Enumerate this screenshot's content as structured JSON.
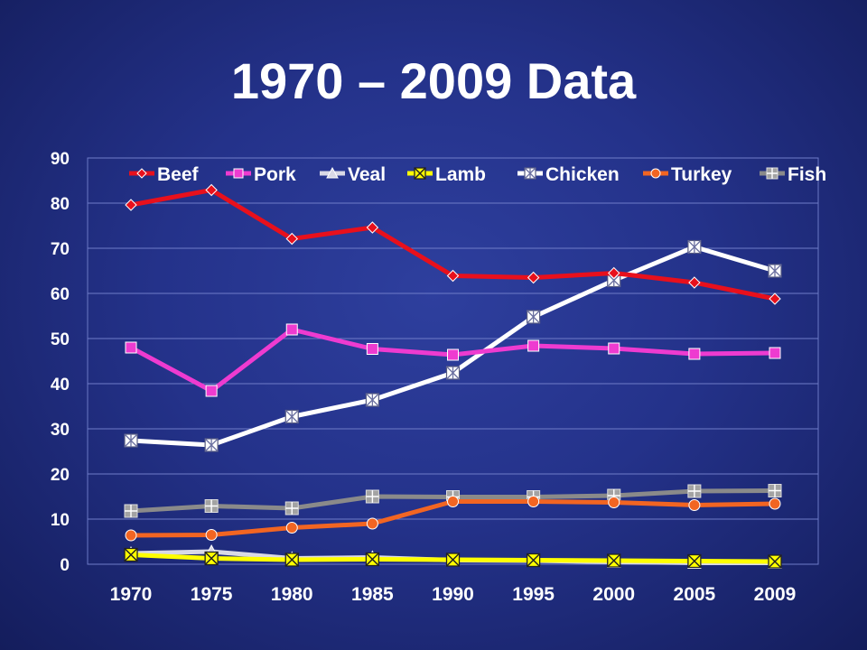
{
  "slide": {
    "title": "1970 – 2009 Data"
  },
  "chart_data": {
    "type": "line",
    "title": "",
    "xlabel": "",
    "ylabel": "",
    "categories": [
      "1970",
      "1975",
      "1980",
      "1985",
      "1990",
      "1995",
      "2000",
      "2005",
      "2009"
    ],
    "ylim": [
      0,
      90
    ],
    "yticks": [
      0,
      10,
      20,
      30,
      40,
      50,
      60,
      70,
      80,
      90
    ],
    "grid": true,
    "legend": "top",
    "series": [
      {
        "name": "Beef",
        "color": "#e8101c",
        "marker": "diamond",
        "markerColor": "#e8101c",
        "values": [
          79.6,
          82.9,
          72.1,
          74.6,
          63.9,
          63.5,
          64.5,
          62.4,
          58.8
        ]
      },
      {
        "name": "Pork",
        "color": "#ee3bd0",
        "marker": "square",
        "markerColor": "#ee3bd0",
        "values": [
          48.0,
          38.4,
          52.0,
          47.7,
          46.4,
          48.4,
          47.8,
          46.6,
          46.8
        ]
      },
      {
        "name": "Veal",
        "color": "#d9d9e6",
        "marker": "triangle",
        "markerColor": "#d9d9e6",
        "values": [
          2.4,
          2.8,
          1.3,
          1.5,
          0.9,
          0.8,
          0.5,
          0.3,
          0.3
        ]
      },
      {
        "name": "Lamb",
        "color": "#ffff00",
        "marker": "x-box",
        "markerColor": "#ffff00",
        "values": [
          2.1,
          1.3,
          1.0,
          1.1,
          1.0,
          0.9,
          0.8,
          0.7,
          0.6
        ]
      },
      {
        "name": "Chicken",
        "color": "#ffffff",
        "marker": "asterisk-box",
        "markerColor": "#ffffff",
        "values": [
          27.4,
          26.4,
          32.7,
          36.4,
          42.4,
          54.8,
          62.9,
          70.3,
          65.0
        ]
      },
      {
        "name": "Turkey",
        "color": "#f26522",
        "marker": "circle",
        "markerColor": "#f26522",
        "values": [
          6.4,
          6.5,
          8.1,
          9.0,
          13.9,
          13.9,
          13.7,
          13.1,
          13.4
        ]
      },
      {
        "name": "Fish",
        "color": "#8a8a8a",
        "marker": "plus-box",
        "markerColor": "#a3a3a3",
        "values": [
          11.8,
          12.9,
          12.4,
          15.0,
          14.9,
          14.9,
          15.2,
          16.2,
          16.3
        ]
      }
    ]
  }
}
